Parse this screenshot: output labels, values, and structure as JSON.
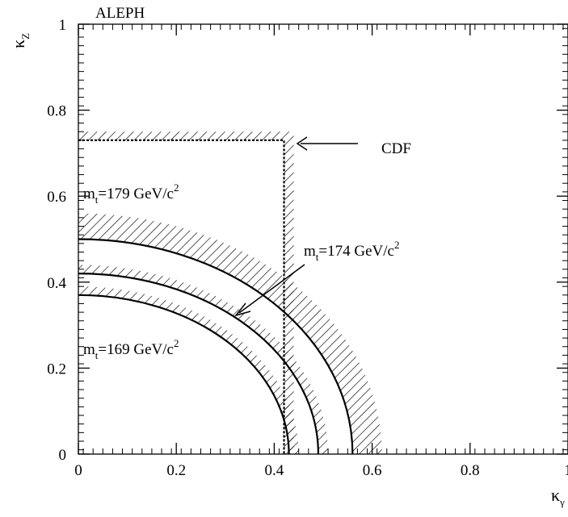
{
  "chart_data": {
    "type": "line",
    "title": "ALEPH",
    "xlabel": "κ",
    "xlabel_sub": "γ",
    "ylabel": "κ",
    "ylabel_sub": "Z",
    "xlim": [
      0,
      1
    ],
    "ylim": [
      0,
      1
    ],
    "x_ticks": [
      0,
      0.2,
      0.4,
      0.6,
      0.8,
      1
    ],
    "x_tick_labels": [
      "0",
      "0.2",
      "0.4",
      "0.6",
      "0.8",
      "1"
    ],
    "y_ticks": [
      0,
      0.2,
      0.4,
      0.6,
      0.8,
      1
    ],
    "y_tick_labels": [
      "0",
      "0.2",
      "0.4",
      "0.6",
      "0.8",
      "1"
    ],
    "grid": false,
    "legend": "none",
    "series": [
      {
        "name": "mt=169 GeV/c2",
        "shape": "quarter-ellipse",
        "x_intercept": 0.43,
        "y_intercept": 0.37,
        "hatch_width": 0.02
      },
      {
        "name": "mt=174 GeV/c2",
        "shape": "quarter-ellipse",
        "x_intercept": 0.49,
        "y_intercept": 0.42,
        "hatch_width": 0.02
      },
      {
        "name": "mt=179 GeV/c2",
        "shape": "quarter-ellipse",
        "x_intercept": 0.56,
        "y_intercept": 0.5,
        "hatch_width": 0.06
      },
      {
        "name": "CDF",
        "shape": "rectangle-boundary",
        "x_limit": 0.42,
        "y_limit": 0.73,
        "hatch_width": 0.02,
        "dashed": true
      }
    ],
    "annotations": {
      "cdf": "CDF",
      "m179_main": "m",
      "m179_sub": "t",
      "m179_rest": "=179 GeV/c",
      "m179_sup": "2",
      "m174_main": "m",
      "m174_sub": "t",
      "m174_rest": "=174 GeV/c",
      "m174_sup": "2",
      "m169_main": "m",
      "m169_sub": "t",
      "m169_rest": "=169 GeV/c",
      "m169_sup": "2"
    }
  }
}
